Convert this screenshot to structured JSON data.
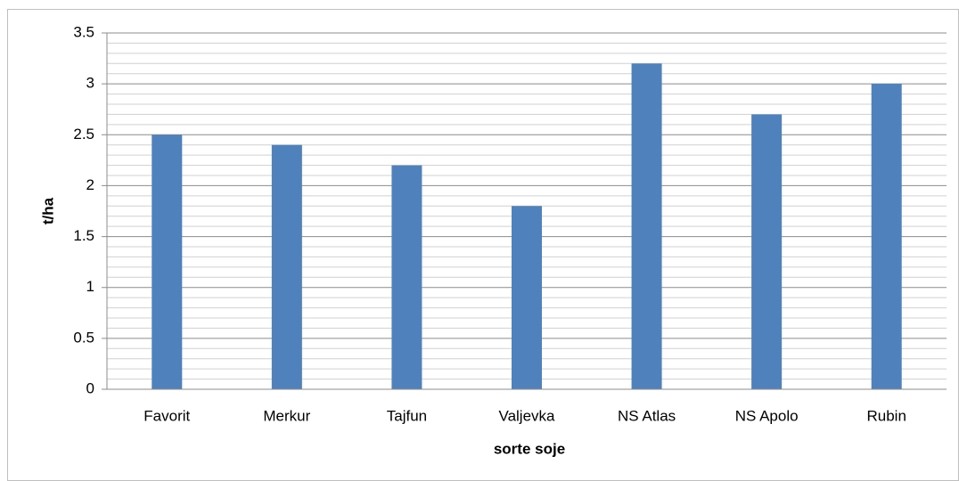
{
  "chart_data": {
    "type": "bar",
    "categories": [
      "Favorit",
      "Merkur",
      "Tajfun",
      "Valjevka",
      "NS Atlas",
      "NS Apolo",
      "Rubin"
    ],
    "values": [
      2.5,
      2.4,
      2.2,
      1.8,
      3.2,
      2.7,
      3.0
    ],
    "color": "#4f81bd",
    "x_label": "sorte soje",
    "y_label": "t/ha",
    "ylim": [
      0,
      3.5
    ],
    "yticks": [
      0,
      0.5,
      1,
      1.5,
      2,
      2.5,
      3,
      3.5
    ],
    "minor_yticks": [
      0.1,
      0.2,
      0.3,
      0.4,
      0.6,
      0.7,
      0.8,
      0.9,
      1.1,
      1.2,
      1.3,
      1.4,
      1.6,
      1.7,
      1.8,
      1.9,
      2.1,
      2.2,
      2.3,
      2.4,
      2.6,
      2.7,
      2.8,
      2.9,
      3.1,
      3.2,
      3.3,
      3.4
    ],
    "grid": true
  }
}
